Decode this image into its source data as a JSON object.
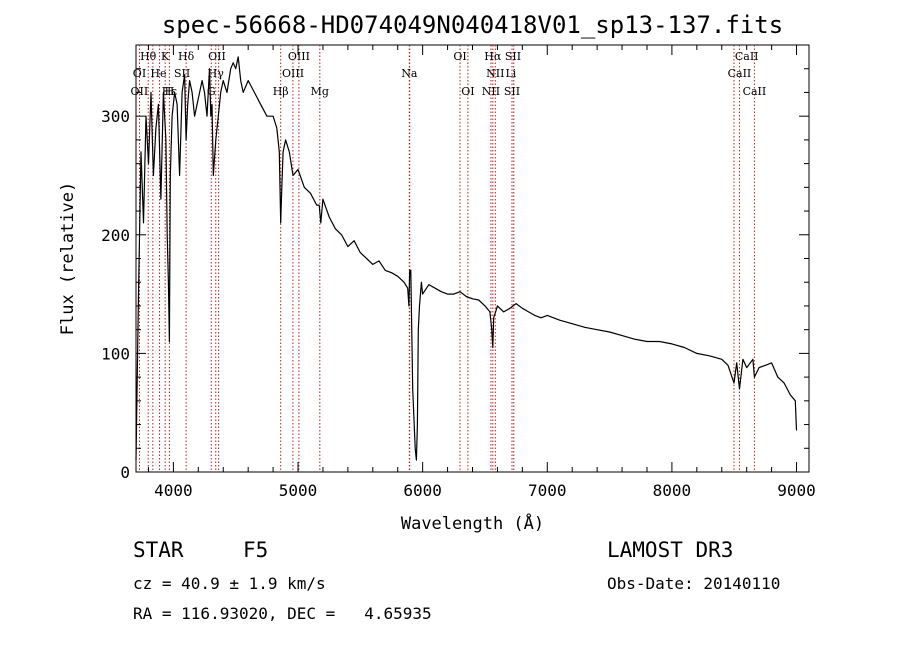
{
  "chart_data": {
    "type": "line",
    "title": "spec-56668-HD074049N040418V01_sp13-137.fits",
    "xlabel": "Wavelength (Å)",
    "ylabel": "Flux (relative)",
    "xlim": [
      3700,
      9100
    ],
    "ylim": [
      0,
      360
    ],
    "xticks": [
      4000,
      5000,
      6000,
      7000,
      8000,
      9000
    ],
    "yticks": [
      0,
      100,
      200,
      300
    ],
    "series": [
      {
        "name": "flux",
        "x": [
          3700,
          3720,
          3740,
          3760,
          3780,
          3800,
          3820,
          3840,
          3860,
          3880,
          3900,
          3920,
          3940,
          3950,
          3960,
          3968,
          3975,
          3990,
          4010,
          4030,
          4050,
          4070,
          4090,
          4102,
          4115,
          4130,
          4150,
          4170,
          4190,
          4210,
          4230,
          4250,
          4270,
          4290,
          4300,
          4310,
          4320,
          4340,
          4360,
          4380,
          4400,
          4430,
          4460,
          4480,
          4500,
          4520,
          4540,
          4560,
          4600,
          4650,
          4700,
          4750,
          4800,
          4830,
          4850,
          4861,
          4870,
          4880,
          4900,
          4930,
          4960,
          5000,
          5050,
          5100,
          5150,
          5170,
          5183,
          5200,
          5250,
          5300,
          5350,
          5400,
          5450,
          5500,
          5550,
          5600,
          5650,
          5700,
          5750,
          5800,
          5850,
          5880,
          5890,
          5896,
          5905,
          5920,
          5940,
          5950,
          5958,
          5965,
          5975,
          5990,
          6000,
          6050,
          6100,
          6150,
          6200,
          6250,
          6300,
          6350,
          6400,
          6450,
          6500,
          6540,
          6555,
          6563,
          6570,
          6585,
          6600,
          6650,
          6700,
          6750,
          6800,
          6850,
          6900,
          6950,
          7000,
          7100,
          7200,
          7300,
          7400,
          7500,
          7600,
          7700,
          7800,
          7900,
          8000,
          8100,
          8200,
          8300,
          8400,
          8450,
          8498,
          8520,
          8542,
          8570,
          8600,
          8650,
          8662,
          8700,
          8750,
          8800,
          8850,
          8900,
          8950,
          8990,
          9000
        ],
        "y": [
          10,
          150,
          270,
          210,
          300,
          260,
          320,
          250,
          290,
          310,
          230,
          320,
          280,
          200,
          160,
          110,
          250,
          300,
          320,
          310,
          250,
          320,
          335,
          280,
          310,
          330,
          320,
          300,
          310,
          320,
          330,
          320,
          300,
          340,
          300,
          310,
          250,
          280,
          300,
          320,
          330,
          320,
          340,
          345,
          340,
          350,
          330,
          320,
          330,
          320,
          310,
          300,
          300,
          290,
          270,
          210,
          240,
          270,
          280,
          270,
          250,
          255,
          240,
          235,
          225,
          225,
          210,
          230,
          215,
          205,
          200,
          190,
          195,
          185,
          180,
          175,
          178,
          170,
          168,
          165,
          160,
          155,
          140,
          170,
          170,
          70,
          20,
          10,
          40,
          120,
          140,
          160,
          150,
          158,
          155,
          152,
          150,
          150,
          152,
          148,
          146,
          145,
          140,
          135,
          120,
          105,
          130,
          135,
          140,
          135,
          138,
          142,
          138,
          135,
          132,
          130,
          132,
          128,
          125,
          122,
          120,
          118,
          115,
          112,
          110,
          110,
          108,
          105,
          100,
          98,
          95,
          90,
          75,
          92,
          70,
          95,
          88,
          95,
          80,
          88,
          90,
          92,
          80,
          75,
          65,
          60,
          35
        ]
      }
    ],
    "line_labels": {
      "row1": [
        {
          "text": "Hθ",
          "x": 3798
        },
        {
          "text": "K",
          "x": 3934
        },
        {
          "text": "Hδ",
          "x": 4102
        },
        {
          "text": "OII",
          "x": 4350
        },
        {
          "text": "OIII",
          "x": 5007
        },
        {
          "text": "OI",
          "x": 6300
        },
        {
          "text": "Hα",
          "x": 6563
        },
        {
          "text": "SII",
          "x": 6725
        },
        {
          "text": "CaII",
          "x": 8600
        }
      ],
      "row2": [
        {
          "text": "OI",
          "x": 3728
        },
        {
          "text": "He",
          "x": 3880
        },
        {
          "text": "SII",
          "x": 4070
        },
        {
          "text": "Hγ",
          "x": 4340
        },
        {
          "text": "OIII",
          "x": 4960
        },
        {
          "text": "Na",
          "x": 5893
        },
        {
          "text": "NII",
          "x": 6583
        },
        {
          "text": "Li",
          "x": 6708
        },
        {
          "text": "CaII",
          "x": 8542
        }
      ],
      "row3": [
        {
          "text": "OII",
          "x": 3727
        },
        {
          "text": "Hε",
          "x": 3968
        },
        {
          "text": "H",
          "x": 3968
        },
        {
          "text": "G",
          "x": 4304
        },
        {
          "text": "Hβ",
          "x": 4861
        },
        {
          "text": "Mg",
          "x": 5175
        },
        {
          "text": "OI",
          "x": 6363
        },
        {
          "text": "NII",
          "x": 6548
        },
        {
          "text": "SII",
          "x": 6717
        },
        {
          "text": "CaII",
          "x": 8662
        }
      ],
      "vlines": [
        3728,
        3798,
        3835,
        3889,
        3934,
        3968,
        4102,
        4304,
        4340,
        4363,
        4861,
        4959,
        5007,
        5175,
        5893,
        5896,
        6300,
        6363,
        6548,
        6563,
        6583,
        6717,
        6731,
        8498,
        8542,
        8662
      ]
    }
  },
  "info": {
    "class_label": "STAR",
    "subclass": "F5",
    "survey": "LAMOST DR3",
    "cz": "cz = 40.9 ± 1.9 km/s",
    "obs_date": "Obs-Date: 20140110",
    "coords": "RA = 116.93020, DEC =   4.65935"
  }
}
